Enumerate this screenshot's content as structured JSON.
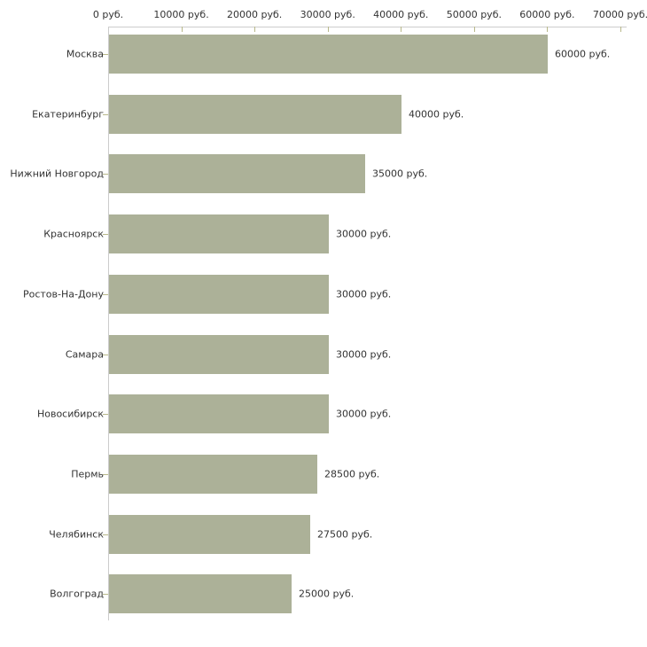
{
  "chart_data": {
    "type": "bar",
    "orientation": "horizontal",
    "title": "",
    "xlabel": "",
    "ylabel": "",
    "categories": [
      "Москва",
      "Екатеринбург",
      "Нижний Новгород",
      "Красноярск",
      "Ростов-На-Дону",
      "Самара",
      "Новосибирск",
      "Пермь",
      "Челябинск",
      "Волгоград"
    ],
    "values": [
      60000,
      40000,
      35000,
      30000,
      30000,
      30000,
      30000,
      28500,
      27500,
      25000
    ],
    "value_labels": [
      "60000 руб.",
      "40000 руб.",
      "35000 руб.",
      "30000 руб.",
      "30000 руб.",
      "30000 руб.",
      "30000 руб.",
      "28500 руб.",
      "27500 руб.",
      "25000 руб."
    ],
    "x_tick_values": [
      0,
      10000,
      20000,
      30000,
      40000,
      50000,
      60000,
      70000
    ],
    "x_tick_labels": [
      "0 руб.",
      "10000 руб.",
      "20000 руб.",
      "30000 руб.",
      "40000 руб.",
      "50000 руб.",
      "60000 руб.",
      "70000 руб."
    ],
    "xlim": [
      0,
      70000
    ],
    "grid": false,
    "legend": false,
    "colors": {
      "bar": "#acb198",
      "axis_line": "#cccccc",
      "tick_mark": "#b8b88a",
      "text": "#333333",
      "background": "#ffffff"
    }
  }
}
